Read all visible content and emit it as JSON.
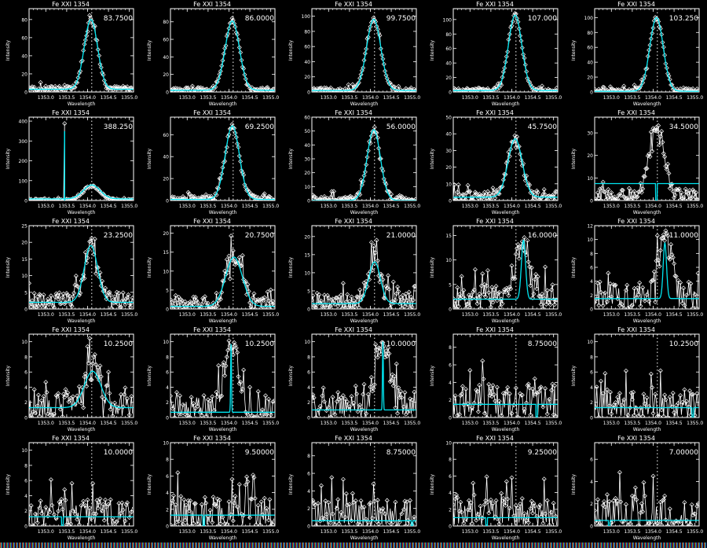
{
  "figure": {
    "panel_title": "Fe XXI 1354",
    "xlabel": "Wavelength",
    "ylabel": "Intensity",
    "xlim": [
      1352.6,
      1355.1
    ],
    "xticks": [
      1353.0,
      1353.5,
      1354.0,
      1354.5,
      1355.0
    ],
    "xtick_labels": [
      "1353.0",
      "1353.5",
      "1354.0",
      "1354.5",
      "1355.0"
    ],
    "reference_line_x": 1354.1,
    "colors": {
      "background": "#000000",
      "data": "#ffffff",
      "fit": "#00e5f0",
      "axes": "#ffffff"
    }
  },
  "chart_data": [
    {
      "type": "line",
      "row": 1,
      "col": 1,
      "title": "Fe XXI 1354",
      "annotation": "83.7500",
      "ylim": [
        0,
        92
      ],
      "yticks": [
        0,
        20,
        40,
        60,
        80
      ],
      "fit": {
        "peak": 77,
        "center": 1354.08,
        "width": 0.16,
        "background": 3
      },
      "noise": 6
    },
    {
      "type": "line",
      "row": 1,
      "col": 2,
      "title": "Fe XXI 1354",
      "annotation": "86.0000",
      "ylim": [
        0,
        95
      ],
      "yticks": [
        0,
        20,
        40,
        60,
        80
      ],
      "fit": {
        "peak": 79,
        "center": 1354.08,
        "width": 0.17,
        "background": 2
      },
      "noise": 6
    },
    {
      "type": "line",
      "row": 1,
      "col": 3,
      "title": "Fe XXI 1354",
      "annotation": "99.7500",
      "ylim": [
        0,
        110
      ],
      "yticks": [
        0,
        20,
        40,
        60,
        80,
        100
      ],
      "fit": {
        "peak": 94,
        "center": 1354.08,
        "width": 0.17,
        "background": 2
      },
      "noise": 6
    },
    {
      "type": "line",
      "row": 1,
      "col": 4,
      "title": "Fe XXI 1354",
      "annotation": "107.000",
      "ylim": [
        0,
        115
      ],
      "yticks": [
        0,
        20,
        40,
        60,
        80,
        100
      ],
      "fit": {
        "peak": 104,
        "center": 1354.08,
        "width": 0.16,
        "background": 2
      },
      "noise": 6
    },
    {
      "type": "line",
      "row": 1,
      "col": 5,
      "title": "Fe XXI 1354",
      "annotation": "103.250",
      "ylim": [
        0,
        112
      ],
      "yticks": [
        0,
        20,
        40,
        60,
        80,
        100
      ],
      "fit": {
        "peak": 99,
        "center": 1354.08,
        "width": 0.16,
        "background": 1
      },
      "noise": 6
    },
    {
      "type": "line",
      "row": 2,
      "col": 1,
      "title": "Fe XXI 1354",
      "annotation": "388.250",
      "ylim": [
        0,
        420
      ],
      "yticks": [
        0,
        100,
        200,
        300,
        400
      ],
      "fit": {
        "peak": 70,
        "center": 1354.1,
        "width": 0.2,
        "background": 8
      },
      "spike": {
        "x": 1353.45,
        "y": 388
      },
      "noise": 10
    },
    {
      "type": "line",
      "row": 2,
      "col": 2,
      "title": "Fe XXI 1354",
      "annotation": "69.2500",
      "ylim": [
        0,
        76
      ],
      "yticks": [
        0,
        20,
        40,
        60
      ],
      "fit": {
        "peak": 67,
        "center": 1354.08,
        "width": 0.17,
        "background": 1
      },
      "noise": 5
    },
    {
      "type": "line",
      "row": 2,
      "col": 3,
      "title": "Fe XXI 1354",
      "annotation": "56.0000",
      "ylim": [
        0,
        60
      ],
      "yticks": [
        0,
        10,
        20,
        30,
        40,
        50,
        60
      ],
      "fit": {
        "peak": 51,
        "center": 1354.08,
        "width": 0.16,
        "background": 0
      },
      "noise": 5
    },
    {
      "type": "line",
      "row": 2,
      "col": 4,
      "title": "Fe XXI 1354",
      "annotation": "45.7500",
      "ylim": [
        0,
        50
      ],
      "yticks": [
        0,
        10,
        20,
        30,
        40,
        50
      ],
      "fit": {
        "peak": 35,
        "center": 1354.08,
        "width": 0.17,
        "background": 2
      },
      "noise": 6
    },
    {
      "type": "line",
      "row": 2,
      "col": 5,
      "title": "Fe XXI 1354",
      "annotation": "34.5000",
      "ylim": [
        0,
        37
      ],
      "yticks": [
        0,
        10,
        20,
        30
      ],
      "fit": {
        "peak": 0,
        "center": 1354.08,
        "width": 0.17,
        "background": 7.5
      },
      "noise": 6,
      "data_peak": 30
    },
    {
      "type": "line",
      "row": 3,
      "col": 1,
      "title": "Fe XXI 1354",
      "annotation": "23.2500",
      "ylim": [
        0,
        25
      ],
      "yticks": [
        0,
        5,
        10,
        15,
        20,
        25
      ],
      "fit": {
        "peak": 17,
        "center": 1354.08,
        "width": 0.16,
        "background": 2
      },
      "noise": 5
    },
    {
      "type": "line",
      "row": 3,
      "col": 2,
      "title": "Fe XXI 1354",
      "annotation": "20.7500",
      "ylim": [
        0,
        22
      ],
      "yticks": [
        0,
        5,
        10,
        15,
        20
      ],
      "fit": {
        "peak": 13,
        "center": 1354.12,
        "width": 0.2,
        "background": 0.7
      },
      "noise": 5
    },
    {
      "type": "line",
      "row": 3,
      "col": 3,
      "title": "Fe XXI 1354",
      "annotation": "21.0000",
      "ylim": [
        0,
        23
      ],
      "yticks": [
        0,
        5,
        10,
        15,
        20
      ],
      "fit": {
        "peak": 11.5,
        "center": 1354.1,
        "width": 0.14,
        "background": 1.5
      },
      "noise": 5
    },
    {
      "type": "line",
      "row": 3,
      "col": 4,
      "title": "Fe XXI 1354",
      "annotation": "16.0000",
      "ylim": [
        0,
        17
      ],
      "yticks": [
        0,
        5,
        10,
        15
      ],
      "fit": {
        "peak": 12,
        "center": 1354.28,
        "width": 0.05,
        "background": 2
      },
      "noise": 5
    },
    {
      "type": "line",
      "row": 3,
      "col": 5,
      "title": "Fe XXI 1354",
      "annotation": "11.0000",
      "ylim": [
        0,
        12
      ],
      "yticks": [
        0,
        2,
        4,
        6,
        8,
        10,
        12
      ],
      "fit": {
        "peak": 8,
        "center": 1354.28,
        "width": 0.04,
        "background": 1.5
      },
      "noise": 4
    },
    {
      "type": "line",
      "row": 4,
      "col": 1,
      "title": "Fe XXI 1354",
      "annotation": "10.2500",
      "ylim": [
        0,
        11
      ],
      "yticks": [
        0,
        2,
        4,
        6,
        8,
        10
      ],
      "fit": {
        "peak": 4.8,
        "center": 1354.12,
        "width": 0.2,
        "background": 1.3
      },
      "noise": 4
    },
    {
      "type": "line",
      "row": 4,
      "col": 2,
      "title": "Fe XXI 1354",
      "annotation": "10.2500",
      "ylim": [
        0,
        11
      ],
      "yticks": [
        0,
        2,
        4,
        6,
        8,
        10
      ],
      "fit": {
        "peak": 9,
        "center": 1354.05,
        "width": 0.01,
        "background": 0.7
      },
      "noise": 4
    },
    {
      "type": "line",
      "row": 4,
      "col": 3,
      "title": "Fe XXI 1354",
      "annotation": "10.0000",
      "ylim": [
        0,
        11
      ],
      "yticks": [
        0,
        2,
        4,
        6,
        8,
        10
      ],
      "fit": {
        "peak": 9,
        "center": 1354.3,
        "width": 0.01,
        "background": 1
      },
      "noise": 4
    },
    {
      "type": "line",
      "row": 4,
      "col": 4,
      "title": "Fe XXI 1354",
      "annotation": "8.75000",
      "ylim": [
        0,
        9.5
      ],
      "yticks": [
        0,
        2,
        4,
        6,
        8
      ],
      "fit": {
        "peak": 0,
        "center": 1354.6,
        "width": 0.02,
        "background": 1.5
      },
      "noise": 4
    },
    {
      "type": "line",
      "row": 4,
      "col": 5,
      "title": "Fe XXI 1354",
      "annotation": "10.2500",
      "ylim": [
        0,
        11
      ],
      "yticks": [
        0,
        2,
        4,
        6,
        8,
        10
      ],
      "fit": {
        "peak": 0,
        "center": 1354.95,
        "width": 0.02,
        "background": 1.3
      },
      "noise": 4
    },
    {
      "type": "line",
      "row": 5,
      "col": 1,
      "title": "Fe XXI 1354",
      "annotation": "10.0000",
      "ylim": [
        0,
        11
      ],
      "yticks": [
        0,
        2,
        4,
        6,
        8,
        10
      ],
      "fit": {
        "peak": 0,
        "center": 1353.4,
        "width": 0.02,
        "background": 1.2
      },
      "noise": 4
    },
    {
      "type": "line",
      "row": 5,
      "col": 2,
      "title": "Fe XXI 1354",
      "annotation": "9.50000",
      "ylim": [
        0,
        10
      ],
      "yticks": [
        0,
        2,
        4,
        6,
        8,
        10
      ],
      "fit": {
        "peak": 0,
        "center": 1353.4,
        "width": 0.02,
        "background": 1.3
      },
      "noise": 4
    },
    {
      "type": "line",
      "row": 5,
      "col": 3,
      "title": "Fe XXI 1354",
      "annotation": "8.75000",
      "ylim": [
        0,
        9.5
      ],
      "yticks": [
        0,
        2,
        4,
        6,
        8
      ],
      "fit": {
        "peak": 0,
        "center": 1355.0,
        "width": 0.02,
        "background": 0.6
      },
      "noise": 4
    },
    {
      "type": "line",
      "row": 5,
      "col": 4,
      "title": "Fe XXI 1354",
      "annotation": "9.25000",
      "ylim": [
        0,
        10
      ],
      "yticks": [
        0,
        2,
        4,
        6,
        8,
        10
      ],
      "fit": {
        "peak": 0,
        "center": 1353.4,
        "width": 0.02,
        "background": 1
      },
      "noise": 4
    },
    {
      "type": "line",
      "row": 5,
      "col": 5,
      "title": "Fe XXI 1354",
      "annotation": "7.00000",
      "ylim": [
        0,
        7.5
      ],
      "yticks": [
        0,
        2,
        4,
        6
      ],
      "fit": {
        "peak": 0,
        "center": 1352.95,
        "width": 0.02,
        "background": 0.5
      },
      "noise": 4
    }
  ]
}
